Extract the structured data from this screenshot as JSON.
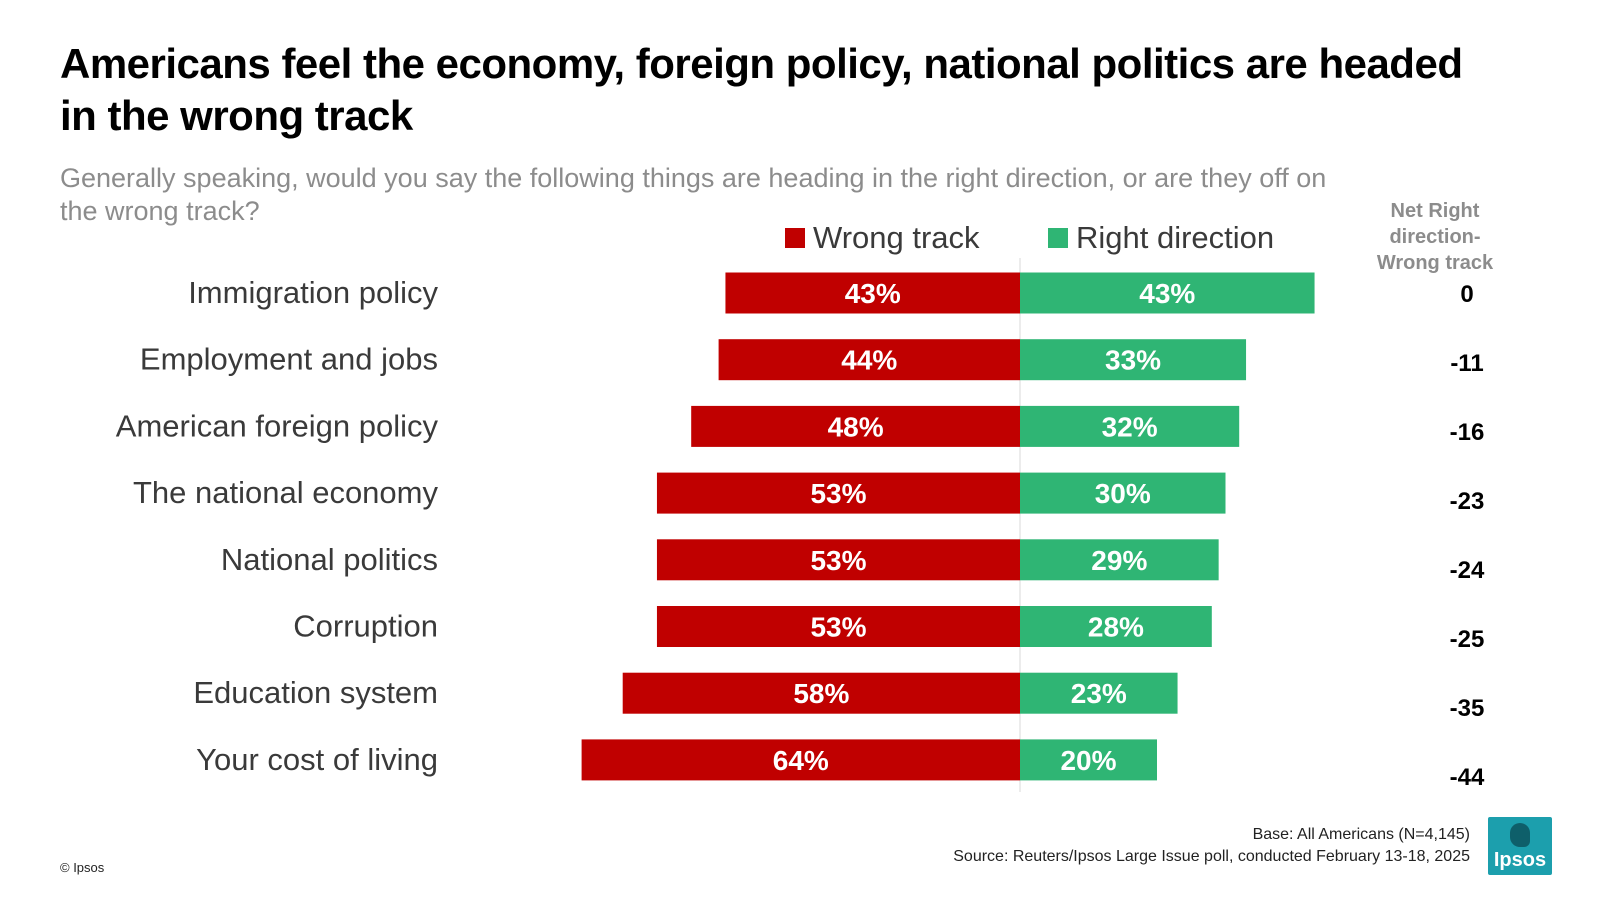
{
  "title": "Americans feel the economy, foreign policy, national politics are headed in the wrong track",
  "subtitle": "Generally speaking, would you say the following things are heading in the right direction, or are they off on the wrong track?",
  "net_header": [
    "Net Right direction-",
    "Wrong track"
  ],
  "colors": {
    "wrong": "#c00000",
    "right": "#2fb574",
    "label": "#3a3a3a",
    "value": "#ffffff",
    "net": "#000000"
  },
  "chart_data": {
    "type": "bar",
    "orientation": "horizontal-diverging",
    "categories": [
      "Immigration policy",
      "Employment and jobs",
      "American foreign policy",
      "The national economy",
      "National politics",
      "Corruption",
      "Education system",
      "Your cost of living"
    ],
    "series": [
      {
        "name": "Wrong track",
        "values": [
          43,
          44,
          48,
          53,
          53,
          53,
          58,
          64
        ],
        "labels": [
          "43%",
          "44%",
          "48%",
          "53%",
          "53%",
          "53%",
          "58%",
          "64%"
        ]
      },
      {
        "name": "Right direction",
        "values": [
          43,
          33,
          32,
          30,
          29,
          28,
          23,
          20
        ],
        "labels": [
          "43%",
          "33%",
          "32%",
          "30%",
          "29%",
          "28%",
          "23%",
          "20%"
        ]
      }
    ],
    "net": [
      "0",
      "-11",
      "-16",
      "-23",
      "-24",
      "-25",
      "-35",
      "-44"
    ],
    "legend_position": "top",
    "grid": false
  },
  "footer": {
    "base": "Base: All Americans (N=4,145)",
    "source": "Source: Reuters/Ipsos Large Issue poll, conducted February 13-18, 2025",
    "copyright": "© Ipsos",
    "logo_text": "Ipsos"
  }
}
